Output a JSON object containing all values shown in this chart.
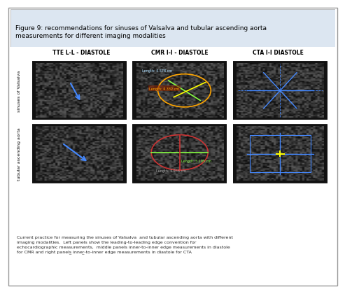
{
  "title": "Figure 9: recommendations for sinuses of Valsalva and tubular ascending aorta\nmeasurements for different imaging modalities",
  "col_headers": [
    "TTE L-L - DIASTOLE",
    "CMR I-I - DIASTOLE",
    "CTA I-I DIASTOLE"
  ],
  "row_labels": [
    "sinuses of Valsalva",
    "tubular ascending aorta"
  ],
  "caption": "Current practice for measuring the sinuses of Valsalva  and tubular ascending aorta with different\nimaging modalities.  Left panels show the leading-to-leading edge convention for\nechocardiographic measurements,  middle panels inner-to-inner edge measurements in diastole\nfor CMR and right panels̲ inner̲-to-inner edge measurements in diastole for CTA",
  "bg_color": "#dce6f1",
  "panel_bg": "#1a1a1a",
  "border_color": "#cccccc",
  "title_bg": "#dce6f1",
  "body_bg": "#ffffff",
  "header_color": "#000000",
  "caption_color": "#222222"
}
